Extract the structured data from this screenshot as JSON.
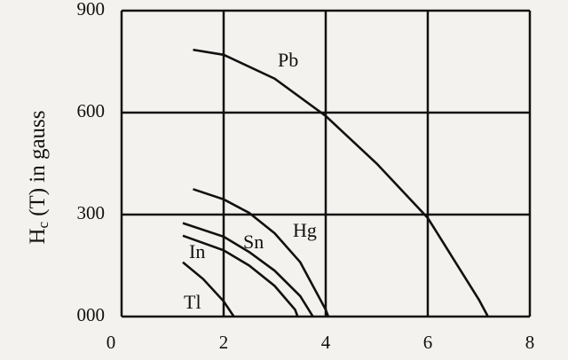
{
  "chart_data": {
    "type": "line",
    "ylabel": {
      "symbol": "H",
      "subscript": "c",
      "text": "(T) in gauss"
    },
    "xlim": [
      0,
      8
    ],
    "xticks": [
      0,
      2,
      4,
      6,
      8
    ],
    "ylim": [
      0,
      900
    ],
    "yticks": [
      {
        "value": 0,
        "label": "000"
      },
      300,
      600,
      900
    ],
    "grid": true,
    "series": [
      {
        "name": "Pb",
        "color": "#111111",
        "x": [
          1.4,
          2,
          3,
          4,
          5,
          6,
          7,
          7.18
        ],
        "values": [
          785,
          770,
          700,
          590,
          450,
          290,
          50,
          0
        ]
      },
      {
        "name": "Hg",
        "color": "#111111",
        "x": [
          1.4,
          2,
          2.5,
          3,
          3.5,
          4.0,
          4.05
        ],
        "values": [
          375,
          345,
          305,
          245,
          160,
          20,
          0
        ]
      },
      {
        "name": "Sn",
        "color": "#111111",
        "x": [
          1.2,
          2,
          2.5,
          3,
          3.5,
          3.75
        ],
        "values": [
          275,
          235,
          190,
          135,
          60,
          0
        ]
      },
      {
        "name": "In",
        "color": "#111111",
        "x": [
          1.2,
          2,
          2.5,
          3,
          3.4,
          3.45
        ],
        "values": [
          238,
          195,
          150,
          90,
          20,
          0
        ]
      },
      {
        "name": "Tl",
        "color": "#111111",
        "x": [
          1.2,
          1.6,
          2,
          2.2
        ],
        "values": [
          160,
          110,
          45,
          0
        ]
      }
    ]
  }
}
